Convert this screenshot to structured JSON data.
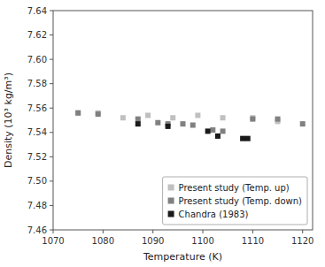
{
  "chart_data": {
    "type": "scatter",
    "xlabel": "Temperature (K)",
    "ylabel": "Density (10³ kg/m³)",
    "xlim": [
      1070,
      1122
    ],
    "ylim": [
      7.46,
      7.64
    ],
    "xticks": [
      1070,
      1080,
      1090,
      1100,
      1110,
      1120
    ],
    "yticks": [
      7.46,
      7.48,
      {
        "value": 7.5,
        "label": "7.50"
      },
      7.52,
      7.54,
      7.56,
      7.58,
      {
        "value": 7.6,
        "label": "7.60"
      },
      7.62,
      7.64
    ],
    "grid": false,
    "legend": "lower right",
    "marker": "square",
    "series": [
      {
        "name": "Present study (Temp. up)",
        "color": "#c0c0c0",
        "x": [
          1075,
          1079,
          1084,
          1089,
          1094,
          1099,
          1104,
          1110,
          1115
        ],
        "values": [
          7.556,
          7.556,
          7.552,
          7.554,
          7.552,
          7.554,
          7.552,
          7.552,
          7.549
        ]
      },
      {
        "name": "Present study (Temp. down)",
        "color": "#808080",
        "x": [
          1075,
          1079,
          1087,
          1091,
          1093,
          1096,
          1098,
          1102,
          1104,
          1110,
          1115,
          1120
        ],
        "values": [
          7.556,
          7.555,
          7.551,
          7.548,
          7.547,
          7.547,
          7.546,
          7.542,
          7.541,
          7.551,
          7.551,
          7.547
        ]
      },
      {
        "name": "Chandra (1983)",
        "color": "#1a1a1a",
        "x": [
          1087,
          1093,
          1101,
          1103,
          1108,
          1109
        ],
        "values": [
          7.547,
          7.545,
          7.541,
          7.537,
          7.535,
          7.535
        ]
      }
    ]
  }
}
